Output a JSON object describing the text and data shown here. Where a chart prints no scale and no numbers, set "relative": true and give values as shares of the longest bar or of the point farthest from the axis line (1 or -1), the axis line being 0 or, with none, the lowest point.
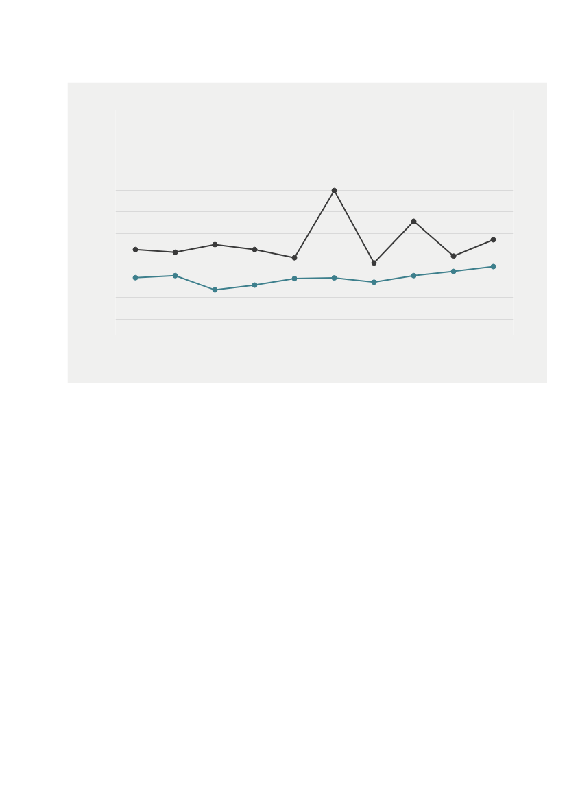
{
  "chart_data": {
    "type": "line",
    "relative": true,
    "grid": "y",
    "marker": "circle",
    "line_style": "solid",
    "categories": [
      null,
      null,
      null,
      null,
      null,
      null,
      null,
      null,
      null,
      null
    ],
    "series": [
      {
        "color": "#3d7f8c",
        "values": [
          0.186,
          0.205,
          0.072,
          0.117,
          0.178,
          0.184,
          0.144,
          0.205,
          0.245,
          0.29
        ]
      },
      {
        "color": "#3a3a3a",
        "values": [
          0.449,
          0.423,
          0.495,
          0.449,
          0.372,
          1.0,
          0.324,
          0.713,
          0.388,
          0.54
        ]
      }
    ]
  }
}
